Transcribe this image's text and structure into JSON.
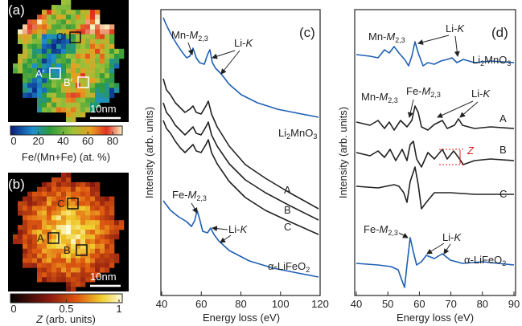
{
  "panel_a": {
    "label": "(a)",
    "boxes": [
      "C′",
      "A′",
      "B′"
    ],
    "scalebar": "10nm",
    "colorbar": {
      "ticks": [
        0,
        20,
        40,
        60,
        80
      ],
      "title": "Fe/(Mn+Fe) (at. %)"
    }
  },
  "panel_b": {
    "label": "(b)",
    "boxes": [
      "C",
      "A",
      "B"
    ],
    "scalebar": "10nm",
    "colorbar": {
      "ticks": [
        0,
        0.5,
        1
      ],
      "title": [
        "Z",
        " (arb. units)"
      ]
    }
  },
  "panel_c": {
    "label": "(c)",
    "ylabel": "Intensity (arb. units)",
    "xlabel": "Energy loss (eV)",
    "xlim": [
      40,
      120
    ],
    "xticks": [
      40,
      60,
      80,
      100,
      120
    ],
    "annotations": {
      "mn": [
        "Mn-",
        "M",
        "2,3"
      ],
      "li_top": [
        "Li-",
        "K"
      ],
      "fe": [
        "Fe-",
        "M",
        "2,3"
      ],
      "li_bottom": [
        "Li-",
        "K"
      ]
    },
    "spectra": {
      "top": [
        "Li",
        "2",
        "MnO",
        "3"
      ],
      "a": "A",
      "b": "B",
      "c": "C",
      "bottom": [
        "α-LiFeO",
        "2"
      ]
    }
  },
  "panel_d": {
    "label": "(d)",
    "ylabel": "Intensity (arb. units)",
    "xlabel": "Energy loss (eV)",
    "xlim": [
      40,
      90
    ],
    "xticks": [
      40,
      50,
      60,
      70,
      80,
      90
    ],
    "annotations": {
      "mn_top": [
        "Mn-",
        "M",
        "2,3"
      ],
      "li_top": [
        "Li-",
        "K"
      ],
      "mn_mid": [
        "Mn-",
        "M",
        "2,3"
      ],
      "fe_mid": [
        "Fe-",
        "M",
        "2,3"
      ],
      "li_mid": [
        "Li-",
        "K"
      ],
      "z": "Z",
      "fe_bottom": [
        "Fe-",
        "M",
        "2,3"
      ],
      "li_bottom": [
        "Li-",
        "K"
      ]
    },
    "spectra": {
      "top": [
        "Li",
        "2",
        "MnO",
        "3"
      ],
      "a": "A",
      "b": "B",
      "c": "C",
      "bottom": [
        "α-LiFeO",
        "2"
      ]
    }
  }
}
